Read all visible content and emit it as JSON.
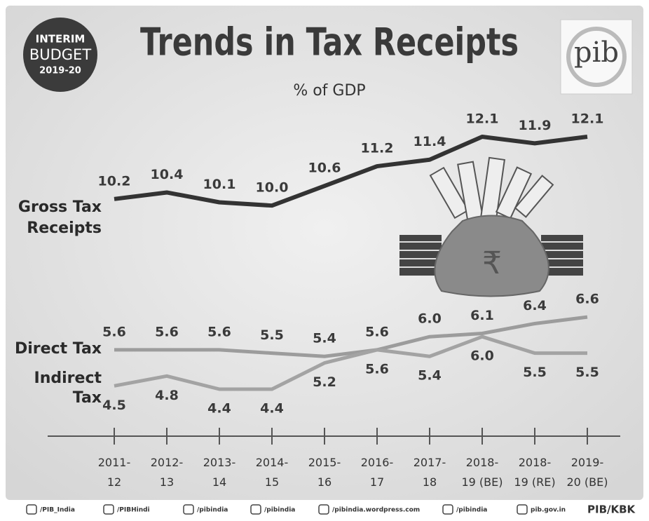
{
  "chart_data": {
    "type": "line",
    "title": "Trends in Tax Receipts",
    "subtitle": "% of GDP",
    "badge": [
      "INTERIM",
      "BUDGET",
      "2019-20"
    ],
    "logo": "pib",
    "bag_symbol": "₹",
    "categories": [
      "2011-\n12",
      "2012-\n13",
      "2013-\n14",
      "2014-\n15",
      "2015-\n16",
      "2016-\n17",
      "2017-\n18",
      "2018-\n19 (BE)",
      "2018-\n19 (RE)",
      "2019-\n20 (BE)"
    ],
    "series": [
      {
        "name": "Gross Tax\nReceipts",
        "color": "#333333",
        "values": [
          10.2,
          10.4,
          10.1,
          10.0,
          10.6,
          11.2,
          11.4,
          12.1,
          11.9,
          12.1
        ],
        "value_labels": [
          "10.2",
          "10.4",
          "10.1",
          "10.0",
          "10.6",
          "11.2",
          "11.4",
          "12.1",
          "11.9",
          "12.1"
        ]
      },
      {
        "name": "Direct Tax",
        "color": "#9c9c9c",
        "values": [
          5.6,
          5.6,
          5.6,
          5.5,
          5.4,
          5.6,
          6.0,
          6.1,
          6.4,
          6.6
        ],
        "value_labels": [
          "5.6",
          "5.6",
          "5.6",
          "5.5",
          "5.4",
          "5.6",
          "6.0",
          "6.1",
          "6.4",
          "6.6"
        ]
      },
      {
        "name": "Indirect\nTax",
        "color": "#a3a3a3",
        "values": [
          4.5,
          4.8,
          4.4,
          4.4,
          5.2,
          5.6,
          5.4,
          6.0,
          5.5,
          5.5
        ],
        "value_labels": [
          "4.5",
          "4.8",
          "4.4",
          "4.4",
          "5.2",
          "5.6",
          "5.4",
          "6.0",
          "5.5",
          "5.5"
        ]
      }
    ],
    "footer": [
      "/PIB_India",
      "/PIBHindi",
      "/pibindia",
      "/pibindia",
      "/pibindia.wordpress.com",
      "/pibindia",
      "pib.gov.in",
      "PIB/KBK"
    ]
  }
}
